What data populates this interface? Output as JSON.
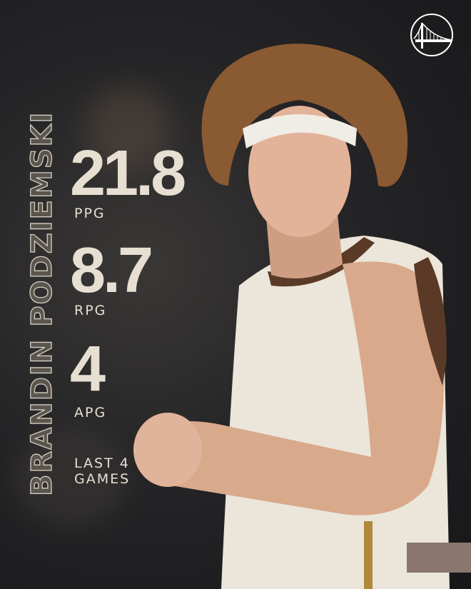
{
  "player": {
    "name": "BRANDIN PODZIEMSKI"
  },
  "stats": [
    {
      "value": "21.8",
      "label": "PPG"
    },
    {
      "value": "8.7",
      "label": "RPG"
    },
    {
      "value": "4",
      "label": "APG"
    }
  ],
  "footnote": "LAST 4\nGAMES",
  "logo": {
    "icon": "golden-state-bridge-logo"
  },
  "colors": {
    "text": "#e6dfd2",
    "jersey": "#ebe5da",
    "trim": "#5a3a26",
    "accent_bar": "#8a766c"
  }
}
